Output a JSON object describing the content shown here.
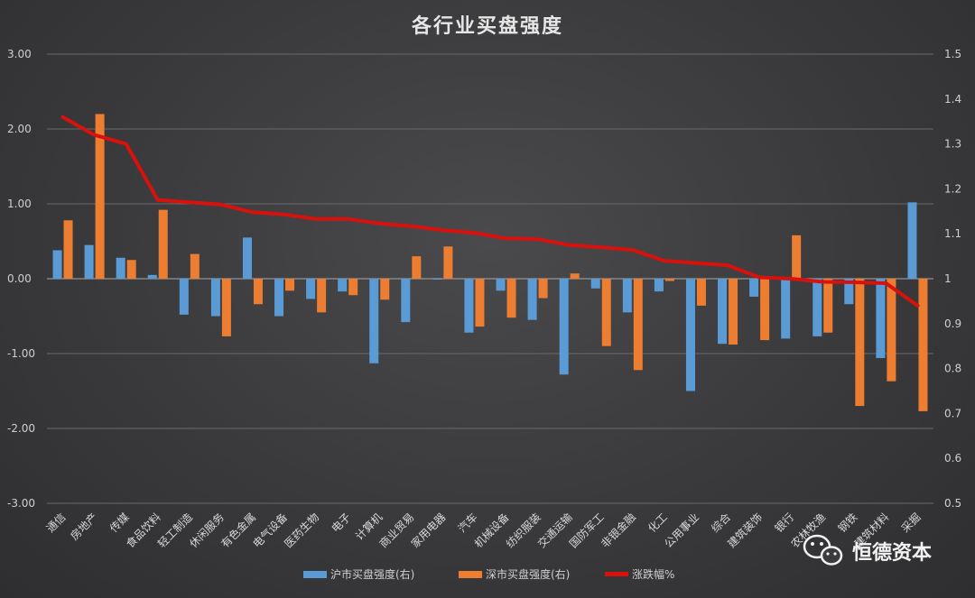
{
  "chart_data": {
    "type": "bar",
    "title": "各行业买盘强度",
    "categories": [
      "通信",
      "房地产",
      "传媒",
      "食品饮料",
      "轻工制造",
      "休闲服务",
      "有色金属",
      "电气设备",
      "医药生物",
      "电子",
      "计算机",
      "商业贸易",
      "家用电器",
      "汽车",
      "机械设备",
      "纺织服装",
      "交通运输",
      "国防军工",
      "非银金融",
      "化工",
      "公用事业",
      "综合",
      "建筑装饰",
      "银行",
      "农林牧渔",
      "钢铁",
      "建筑材料",
      "采掘"
    ],
    "left_axis": {
      "min": -3,
      "max": 3,
      "ticks": [
        "3.00",
        "2.00",
        "1.00",
        "0.00",
        "-1.00",
        "-2.00",
        "-3.00"
      ]
    },
    "right_axis": {
      "min": 0.5,
      "max": 1.5,
      "ticks": [
        "1.5",
        "1.4",
        "1.3",
        "1.2",
        "1.1",
        "1",
        "0.9",
        "0.8",
        "0.7",
        "0.6",
        "0.5"
      ]
    },
    "series": [
      {
        "name": "沪市买盘强度(右)",
        "type": "bar",
        "axis": "left",
        "color": "#5b9bd5",
        "values": [
          0.38,
          0.45,
          0.28,
          0.05,
          -0.48,
          -0.5,
          0.55,
          -0.5,
          -0.27,
          -0.17,
          -1.13,
          -0.58,
          0.0,
          -0.72,
          -0.16,
          -0.55,
          -1.28,
          -0.13,
          -0.45,
          -0.17,
          -1.5,
          -0.87,
          -0.24,
          -0.8,
          -0.77,
          -0.34,
          -1.06,
          1.02
        ]
      },
      {
        "name": "深市买盘强度(右)",
        "type": "bar",
        "axis": "left",
        "color": "#ed7d31",
        "values": [
          0.78,
          2.2,
          0.25,
          0.92,
          0.33,
          -0.77,
          -0.34,
          -0.16,
          -0.45,
          -0.22,
          -0.28,
          0.3,
          0.43,
          -0.64,
          -0.52,
          -0.26,
          0.07,
          -0.9,
          -1.22,
          -0.03,
          -0.36,
          -0.88,
          -0.82,
          0.58,
          -0.72,
          -1.7,
          -1.37,
          -1.77
        ]
      },
      {
        "name": "涨跌幅%",
        "type": "line",
        "axis": "right",
        "color": "#d9110d",
        "values": [
          1.36,
          1.32,
          1.3,
          1.175,
          1.17,
          1.165,
          1.148,
          1.143,
          1.133,
          1.133,
          1.123,
          1.117,
          1.108,
          1.102,
          1.09,
          1.088,
          1.075,
          1.07,
          1.064,
          1.04,
          1.035,
          1.03,
          1.003,
          1.0,
          0.993,
          0.992,
          0.99,
          0.94
        ]
      }
    ],
    "grid": true,
    "legend_position": "bottom"
  },
  "watermark": {
    "text": "恒德资本",
    "icon": "wechat-icon"
  }
}
